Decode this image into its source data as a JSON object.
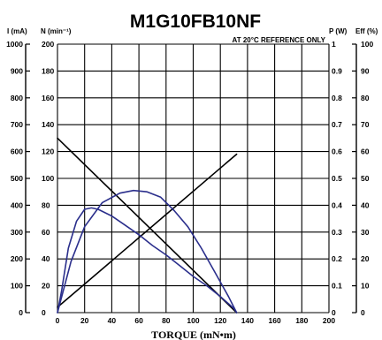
{
  "chart_data": {
    "type": "line",
    "title": "M1G10FB10NF",
    "annotation": "AT 20°C REFERENCE ONLY",
    "xlabel": "TORQUE (mN•m)",
    "xlim": [
      0,
      200
    ],
    "x_ticks": [
      "0",
      "20",
      "40",
      "60",
      "80",
      "100",
      "120",
      "140",
      "160",
      "180",
      "200"
    ],
    "grid": true,
    "axes": {
      "current": {
        "label": "I (mA)",
        "ticks": [
          "0",
          "100",
          "200",
          "300",
          "400",
          "500",
          "600",
          "700",
          "800",
          "900",
          "1000"
        ],
        "lim": [
          0,
          1000
        ]
      },
      "speed": {
        "label": "N (min⁻¹)",
        "ticks": [
          "0",
          "20",
          "40",
          "60",
          "80",
          "100",
          "120",
          "140",
          "160",
          "180",
          "200"
        ],
        "lim": [
          0,
          200
        ]
      },
      "power": {
        "label": "P (W)",
        "ticks": [
          "0",
          "0.1",
          "0.2",
          "0.3",
          "0.4",
          "0.5",
          "0.6",
          "0.7",
          "0.8",
          "0.9",
          "1"
        ],
        "lim": [
          0,
          1
        ]
      },
      "efficiency": {
        "label": "Eff (%)",
        "ticks": [
          "0",
          "10",
          "20",
          "30",
          "40",
          "50",
          "60",
          "70",
          "80",
          "90",
          "100"
        ],
        "lim": [
          0,
          100
        ]
      }
    },
    "series": [
      {
        "axis": "speed",
        "color": "#000000",
        "x": [
          0,
          132
        ],
        "values": [
          130,
          0
        ]
      },
      {
        "axis": "current",
        "color": "#000000",
        "x": [
          0,
          132
        ],
        "values": [
          20,
          590
        ]
      },
      {
        "axis": "power",
        "color": "#2b2f8c",
        "x": [
          0,
          10,
          20,
          33,
          46,
          56,
          66,
          76,
          86,
          96,
          106,
          116,
          126,
          132
        ],
        "values": [
          0,
          0.19,
          0.32,
          0.41,
          0.445,
          0.455,
          0.45,
          0.43,
          0.38,
          0.32,
          0.24,
          0.15,
          0.06,
          0
        ]
      },
      {
        "axis": "efficiency",
        "color": "#2b2f8c",
        "x": [
          0,
          3,
          8,
          14,
          20,
          25,
          30,
          40,
          50,
          60,
          70,
          80,
          90,
          100,
          110,
          120,
          130,
          132
        ],
        "values": [
          0,
          8,
          24,
          34,
          38.5,
          39,
          38.5,
          36,
          32.5,
          29,
          25,
          21.5,
          17.5,
          13.5,
          10,
          6,
          1.5,
          0
        ]
      }
    ]
  }
}
